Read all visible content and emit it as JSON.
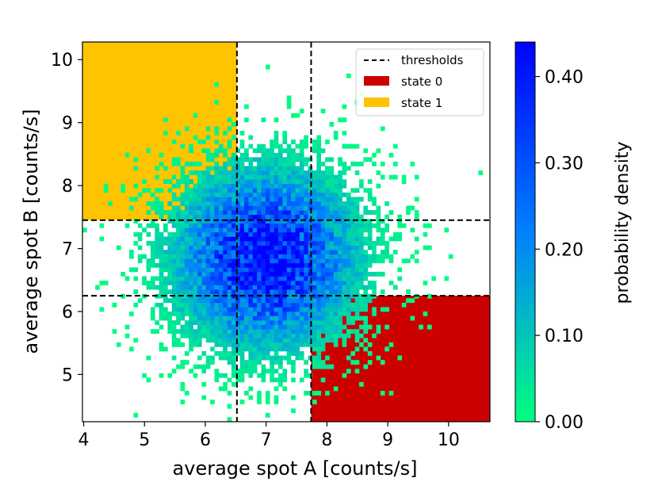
{
  "chart_data": {
    "type": "heatmap",
    "title": "",
    "xlabel": "average spot A [counts/s]",
    "ylabel": "average spot B [counts/s]",
    "xlim": [
      3.98,
      10.68
    ],
    "ylim": [
      4.25,
      10.28
    ],
    "x_ticks": [
      4,
      5,
      6,
      7,
      8,
      9,
      10
    ],
    "y_ticks": [
      5,
      6,
      7,
      8,
      9,
      10
    ],
    "x_tick_labels": [
      "4",
      "5",
      "6",
      "7",
      "8",
      "9",
      "10"
    ],
    "y_tick_labels": [
      "5",
      "6",
      "7",
      "8",
      "9",
      "10"
    ],
    "thresholds": {
      "x": [
        6.52,
        7.74
      ],
      "y": [
        6.25,
        7.45
      ]
    },
    "regions": [
      {
        "name": "state 0",
        "color": "#cc0000",
        "x_range": [
          7.74,
          10.68
        ],
        "y_range": [
          4.25,
          6.25
        ]
      },
      {
        "name": "state 1",
        "color": "#ffc400",
        "x_range": [
          3.98,
          6.52
        ],
        "y_range": [
          7.45,
          10.28
        ]
      }
    ],
    "distribution": {
      "center": [
        7.0,
        6.85
      ],
      "sigma": [
        0.9,
        0.85
      ],
      "peak_density": 0.43,
      "bin_size": 0.07
    },
    "colorbar": {
      "label": "probability density",
      "min": 0.0,
      "max": 0.44,
      "ticks": [
        0.0,
        0.1,
        0.2,
        0.3,
        0.4
      ],
      "tick_labels": [
        "0.00",
        "0.10",
        "0.20",
        "0.30",
        "0.40"
      ],
      "colors": [
        "#00ff7f",
        "#0080ff",
        "#0000ff"
      ]
    },
    "legend": {
      "placement": "top-right",
      "entries": [
        {
          "label": "thresholds",
          "style": "dashed-line",
          "color": "#000000"
        },
        {
          "label": "state 0",
          "style": "patch",
          "color": "#cc0000"
        },
        {
          "label": "state 1",
          "style": "patch",
          "color": "#ffc400"
        }
      ]
    }
  }
}
